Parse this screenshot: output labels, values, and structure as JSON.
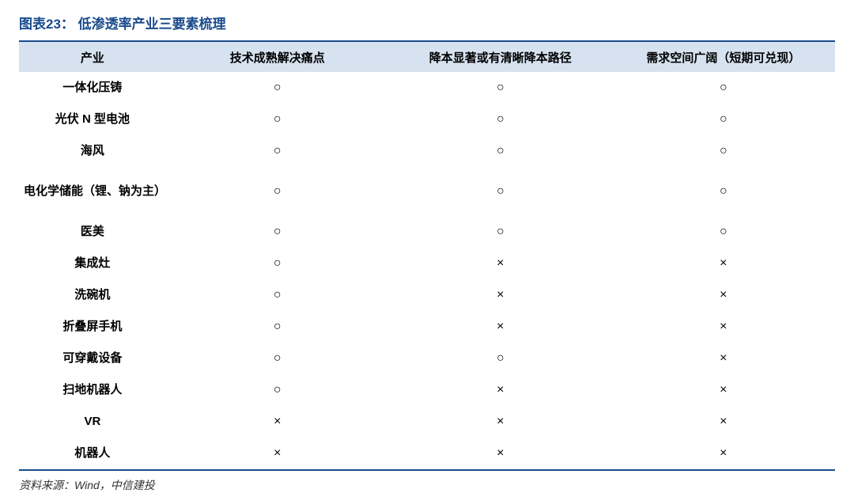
{
  "chart": {
    "type": "table",
    "title": "图表23： 低渗透率产业三要素梳理",
    "columns": [
      "产业",
      "技术成熟解决痛点",
      "降本显著或有清晰降本路径",
      "需求空间广阔（短期可兑现）"
    ],
    "rows": [
      {
        "industry": "一体化压铸",
        "factors": [
          "○",
          "○",
          "○"
        ],
        "tall": false
      },
      {
        "industry": "光伏 N 型电池",
        "factors": [
          "○",
          "○",
          "○"
        ],
        "tall": false
      },
      {
        "industry": "海风",
        "factors": [
          "○",
          "○",
          "○"
        ],
        "tall": false
      },
      {
        "industry": "电化学储能（锂、钠为主）",
        "factors": [
          "○",
          "○",
          "○"
        ],
        "tall": true
      },
      {
        "industry": "医美",
        "factors": [
          "○",
          "○",
          "○"
        ],
        "tall": false
      },
      {
        "industry": "集成灶",
        "factors": [
          "○",
          "×",
          "×"
        ],
        "tall": false
      },
      {
        "industry": "洗碗机",
        "factors": [
          "○",
          "×",
          "×"
        ],
        "tall": false
      },
      {
        "industry": "折叠屏手机",
        "factors": [
          "○",
          "×",
          "×"
        ],
        "tall": false
      },
      {
        "industry": "可穿戴设备",
        "factors": [
          "○",
          "○",
          "×"
        ],
        "tall": false
      },
      {
        "industry": "扫地机器人",
        "factors": [
          "○",
          "×",
          "×"
        ],
        "tall": false
      },
      {
        "industry": "VR",
        "factors": [
          "×",
          "×",
          "×"
        ],
        "tall": false
      },
      {
        "industry": "机器人",
        "factors": [
          "×",
          "×",
          "×"
        ],
        "tall": false
      }
    ],
    "column_widths_pct": [
      18,
      27.33,
      27.33,
      27.33
    ],
    "header_bg": "#d6e2ef",
    "border_color": "#1a4b8c",
    "title_color": "#1a4b8c",
    "title_fontsize": 17,
    "header_fontsize": 15,
    "cell_fontsize": 15,
    "background_color": "#ffffff"
  },
  "source": "资料来源：Wind，中信建投"
}
